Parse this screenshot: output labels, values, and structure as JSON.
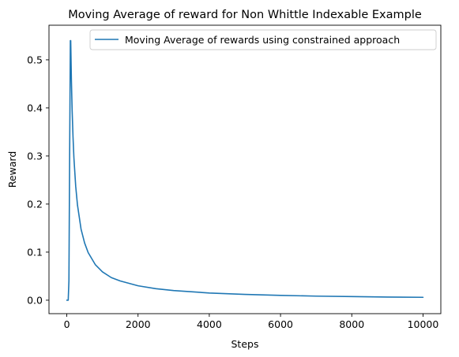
{
  "chart_data": {
    "type": "line",
    "title": "Moving Average of reward for Non Whittle Indexable Example",
    "xlabel": "Steps",
    "ylabel": "Reward",
    "xlim": [
      -500,
      10500
    ],
    "ylim": [
      -0.028,
      0.572
    ],
    "xticks": [
      0,
      2000,
      4000,
      6000,
      8000,
      10000
    ],
    "yticks": [
      0.0,
      0.1,
      0.2,
      0.3,
      0.4,
      0.5
    ],
    "xtick_labels": [
      "0",
      "2000",
      "4000",
      "6000",
      "8000",
      "10000"
    ],
    "ytick_labels": [
      "0.0",
      "0.1",
      "0.2",
      "0.3",
      "0.4",
      "0.5"
    ],
    "grid": false,
    "legend_position": "top-right",
    "series": [
      {
        "name": "Moving Average of rewards using constrained approach",
        "color": "#1f77b4",
        "x": [
          0,
          20,
          40,
          60,
          80,
          100,
          110,
          130,
          150,
          175,
          200,
          250,
          300,
          400,
          500,
          600,
          800,
          1000,
          1250,
          1500,
          2000,
          2500,
          3000,
          4000,
          5000,
          6000,
          7000,
          8000,
          9000,
          10000
        ],
        "y": [
          0.0,
          0.0,
          0.0,
          0.04,
          0.3,
          0.54,
          0.54,
          0.456,
          0.395,
          0.339,
          0.296,
          0.237,
          0.198,
          0.148,
          0.119,
          0.099,
          0.074,
          0.059,
          0.047,
          0.04,
          0.03,
          0.024,
          0.02,
          0.015,
          0.012,
          0.01,
          0.0085,
          0.0075,
          0.0066,
          0.006
        ]
      }
    ]
  }
}
